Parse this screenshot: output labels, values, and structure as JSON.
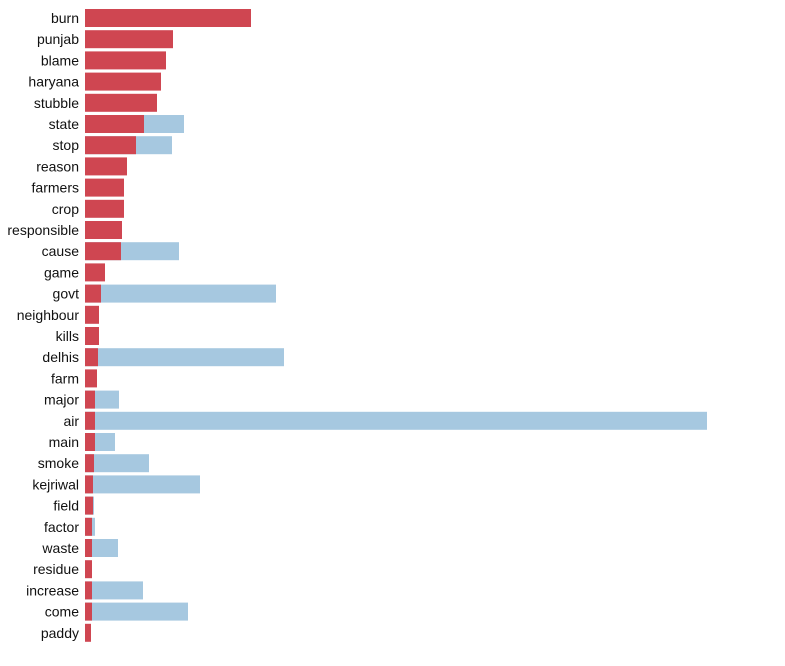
{
  "colors": {
    "foreground": "#cf4651",
    "background": "#a6c8e0"
  },
  "chart_data": {
    "type": "bar",
    "orientation": "horizontal",
    "layout": "overlaid",
    "grid": false,
    "legend": "none",
    "title": "",
    "xlabel": "",
    "ylabel": "",
    "xlim": [
      0,
      780
    ],
    "categories": [
      "burn",
      "punjab",
      "blame",
      "haryana",
      "stubble",
      "state",
      "stop",
      "reason",
      "farmers",
      "crop",
      "responsible",
      "cause",
      "game",
      "govt",
      "neighbour",
      "kills",
      "delhis",
      "farm",
      "major",
      "air",
      "main",
      "smoke",
      "kejriwal",
      "field",
      "factor",
      "waste",
      "residue",
      "increase",
      "come",
      "paddy"
    ],
    "series": [
      {
        "color": "#a6c8e0",
        "values": [
          0,
          0,
          0,
          0,
          0,
          99,
          87,
          0,
          0,
          0,
          0,
          94,
          0,
          191,
          0,
          0,
          199,
          0,
          34,
          622,
          30,
          64,
          115,
          9,
          10,
          33,
          0,
          58,
          103,
          0
        ]
      },
      {
        "color": "#cf4651",
        "values": [
          166,
          88,
          81,
          76,
          72,
          59,
          51,
          42,
          39,
          39,
          37,
          36,
          20,
          16,
          14,
          14,
          13,
          12,
          10,
          10,
          10,
          9,
          8,
          8,
          7,
          7,
          7,
          7,
          7,
          6
        ]
      }
    ]
  }
}
